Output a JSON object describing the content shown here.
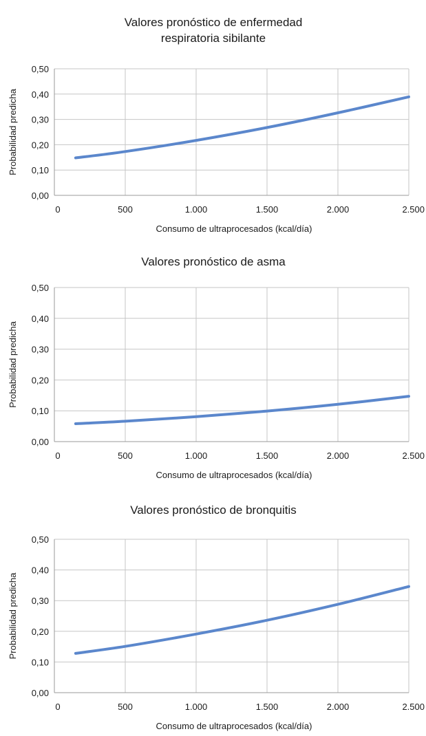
{
  "chart_data": [
    {
      "type": "line",
      "title_lines": [
        "Valores pronóstico de enfermedad",
        "respiratoria sibilante"
      ],
      "xlabel": "Consumo de ultraprocesados (kcal/día)",
      "ylabel": "Probabilidad predicha",
      "xlim": [
        0,
        2500
      ],
      "ylim": [
        0,
        0.5
      ],
      "x_ticks": [
        "0",
        "500",
        "1.000",
        "1.500",
        "2.000",
        "2.500"
      ],
      "y_ticks": [
        "0,00",
        "0,10",
        "0,20",
        "0,30",
        "0,40",
        "0,50"
      ],
      "grid": true,
      "series": [
        {
          "x": [
            150,
            500,
            1000,
            1500,
            2000,
            2500
          ],
          "y": [
            0.148,
            0.173,
            0.217,
            0.268,
            0.326,
            0.389
          ]
        }
      ]
    },
    {
      "type": "line",
      "title_lines": [
        "Valores pronóstico de asma"
      ],
      "xlabel": "Consumo de ultraprocesados (kcal/día)",
      "ylabel": "Probabilidad predicha",
      "xlim": [
        0,
        2500
      ],
      "ylim": [
        0,
        0.5
      ],
      "x_ticks": [
        "0",
        "500",
        "1.000",
        "1.500",
        "2.000",
        "2.500"
      ],
      "y_ticks": [
        "0,00",
        "0,10",
        "0,20",
        "0,30",
        "0,40",
        "0,50"
      ],
      "grid": true,
      "series": [
        {
          "x": [
            150,
            500,
            1000,
            1500,
            2000,
            2500
          ],
          "y": [
            0.058,
            0.066,
            0.081,
            0.099,
            0.121,
            0.147
          ]
        }
      ]
    },
    {
      "type": "line",
      "title_lines": [
        "Valores pronóstico de bronquitis"
      ],
      "xlabel": "Consumo de ultraprocesados (kcal/día)",
      "ylabel": "Probabilidad predicha",
      "xlim": [
        0,
        2500
      ],
      "ylim": [
        0,
        0.5
      ],
      "x_ticks": [
        "0",
        "500",
        "1.000",
        "1.500",
        "2.000",
        "2.500"
      ],
      "y_ticks": [
        "0,00",
        "0,10",
        "0,20",
        "0,30",
        "0,40",
        "0,50"
      ],
      "grid": true,
      "series": [
        {
          "x": [
            150,
            500,
            1000,
            1500,
            2000,
            2500
          ],
          "y": [
            0.128,
            0.151,
            0.191,
            0.236,
            0.288,
            0.346
          ]
        }
      ]
    }
  ],
  "colors": {
    "line": "#5b87cc",
    "grid": "#c6c6c6",
    "axis": "#9a9a9a"
  }
}
